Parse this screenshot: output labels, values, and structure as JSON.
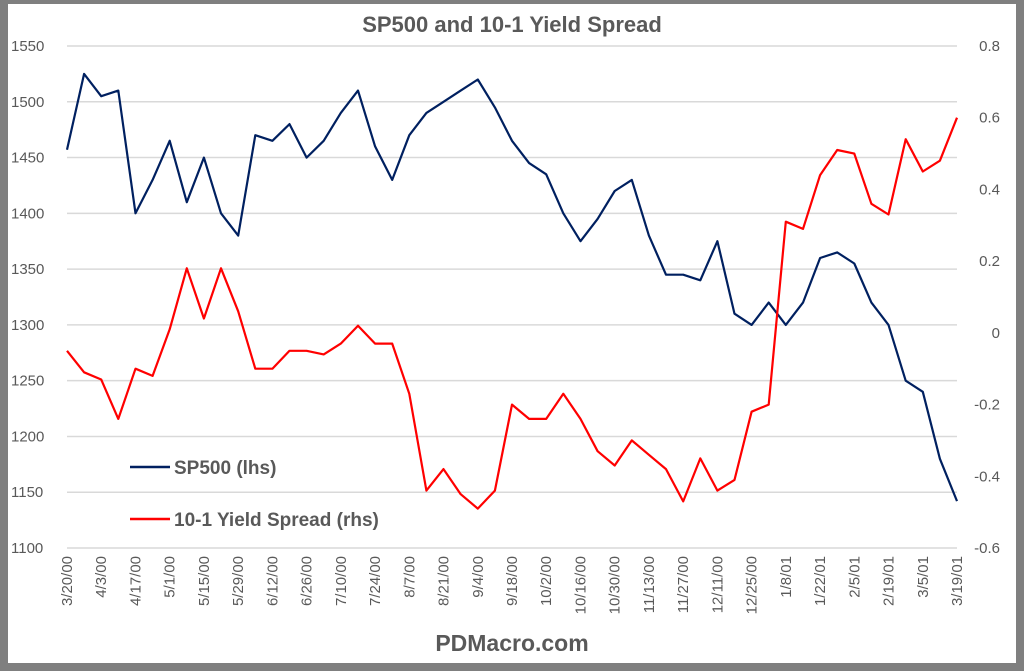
{
  "chart_data": {
    "type": "line",
    "title": "SP500 and 10-1 Yield Spread",
    "footer": "PDMacro.com",
    "x": [
      "3/20/00",
      "3/27/00",
      "4/3/00",
      "4/10/00",
      "4/17/00",
      "4/24/00",
      "5/1/00",
      "5/8/00",
      "5/15/00",
      "5/22/00",
      "5/29/00",
      "6/5/00",
      "6/12/00",
      "6/19/00",
      "6/26/00",
      "7/3/00",
      "7/10/00",
      "7/17/00",
      "7/24/00",
      "7/31/00",
      "8/7/00",
      "8/14/00",
      "8/21/00",
      "8/28/00",
      "9/4/00",
      "9/11/00",
      "9/18/00",
      "9/25/00",
      "10/2/00",
      "10/9/00",
      "10/16/00",
      "10/23/00",
      "10/30/00",
      "11/6/00",
      "11/13/00",
      "11/20/00",
      "11/27/00",
      "12/4/00",
      "12/11/00",
      "12/18/00",
      "12/25/00",
      "1/1/01",
      "1/8/01",
      "1/15/01",
      "1/22/01",
      "1/29/01",
      "2/5/01",
      "2/12/01",
      "2/19/01",
      "2/26/01",
      "3/5/01",
      "3/12/01",
      "3/19/01"
    ],
    "x_tick_labels": [
      "3/20/00",
      "4/3/00",
      "4/17/00",
      "5/1/00",
      "5/15/00",
      "5/29/00",
      "6/12/00",
      "6/26/00",
      "7/10/00",
      "7/24/00",
      "8/7/00",
      "8/21/00",
      "9/4/00",
      "9/18/00",
      "10/2/00",
      "10/16/00",
      "10/30/00",
      "11/13/00",
      "11/27/00",
      "12/11/00",
      "12/25/00",
      "1/8/01",
      "1/22/01",
      "2/5/01",
      "2/19/01",
      "3/5/01",
      "3/19/01"
    ],
    "y_left": {
      "min": 1100,
      "max": 1550,
      "step": 50,
      "ticks": [
        "1100",
        "1150",
        "1200",
        "1250",
        "1300",
        "1350",
        "1400",
        "1450",
        "1500",
        "1550"
      ]
    },
    "y_right": {
      "min": -0.6,
      "max": 0.8,
      "step": 0.2,
      "ticks": [
        "-0.6",
        "-0.4",
        "-0.2",
        "0",
        "0.2",
        "0.4",
        "0.6",
        "0.8"
      ]
    },
    "grid": true,
    "legend_position": "bottom-left",
    "series": [
      {
        "name": "SP500 (lhs)",
        "axis": "left",
        "color": "#002060",
        "values": [
          1457,
          1525,
          1505,
          1510,
          1400,
          1430,
          1465,
          1410,
          1450,
          1400,
          1380,
          1470,
          1465,
          1480,
          1450,
          1465,
          1490,
          1510,
          1460,
          1430,
          1470,
          1490,
          1500,
          1510,
          1520,
          1495,
          1465,
          1445,
          1435,
          1400,
          1375,
          1395,
          1420,
          1430,
          1380,
          1345,
          1345,
          1340,
          1375,
          1310,
          1300,
          1320,
          1300,
          1320,
          1360,
          1365,
          1355,
          1320,
          1300,
          1250,
          1240,
          1180,
          1142
        ]
      },
      {
        "name": "10-1 Yield Spread (rhs)",
        "axis": "right",
        "color": "#ff0000",
        "values": [
          -0.05,
          -0.11,
          -0.13,
          -0.24,
          -0.1,
          -0.12,
          0.01,
          0.18,
          0.04,
          0.18,
          0.06,
          -0.1,
          -0.1,
          -0.05,
          -0.05,
          -0.06,
          -0.03,
          0.02,
          -0.03,
          -0.03,
          -0.17,
          -0.44,
          -0.38,
          -0.45,
          -0.49,
          -0.44,
          -0.2,
          -0.24,
          -0.24,
          -0.17,
          -0.24,
          -0.33,
          -0.37,
          -0.3,
          -0.34,
          -0.38,
          -0.47,
          -0.35,
          -0.44,
          -0.41,
          -0.22,
          -0.2,
          0.31,
          0.29,
          0.44,
          0.51,
          0.5,
          0.36,
          0.33,
          0.54,
          0.45,
          0.48,
          0.6
        ]
      }
    ]
  }
}
